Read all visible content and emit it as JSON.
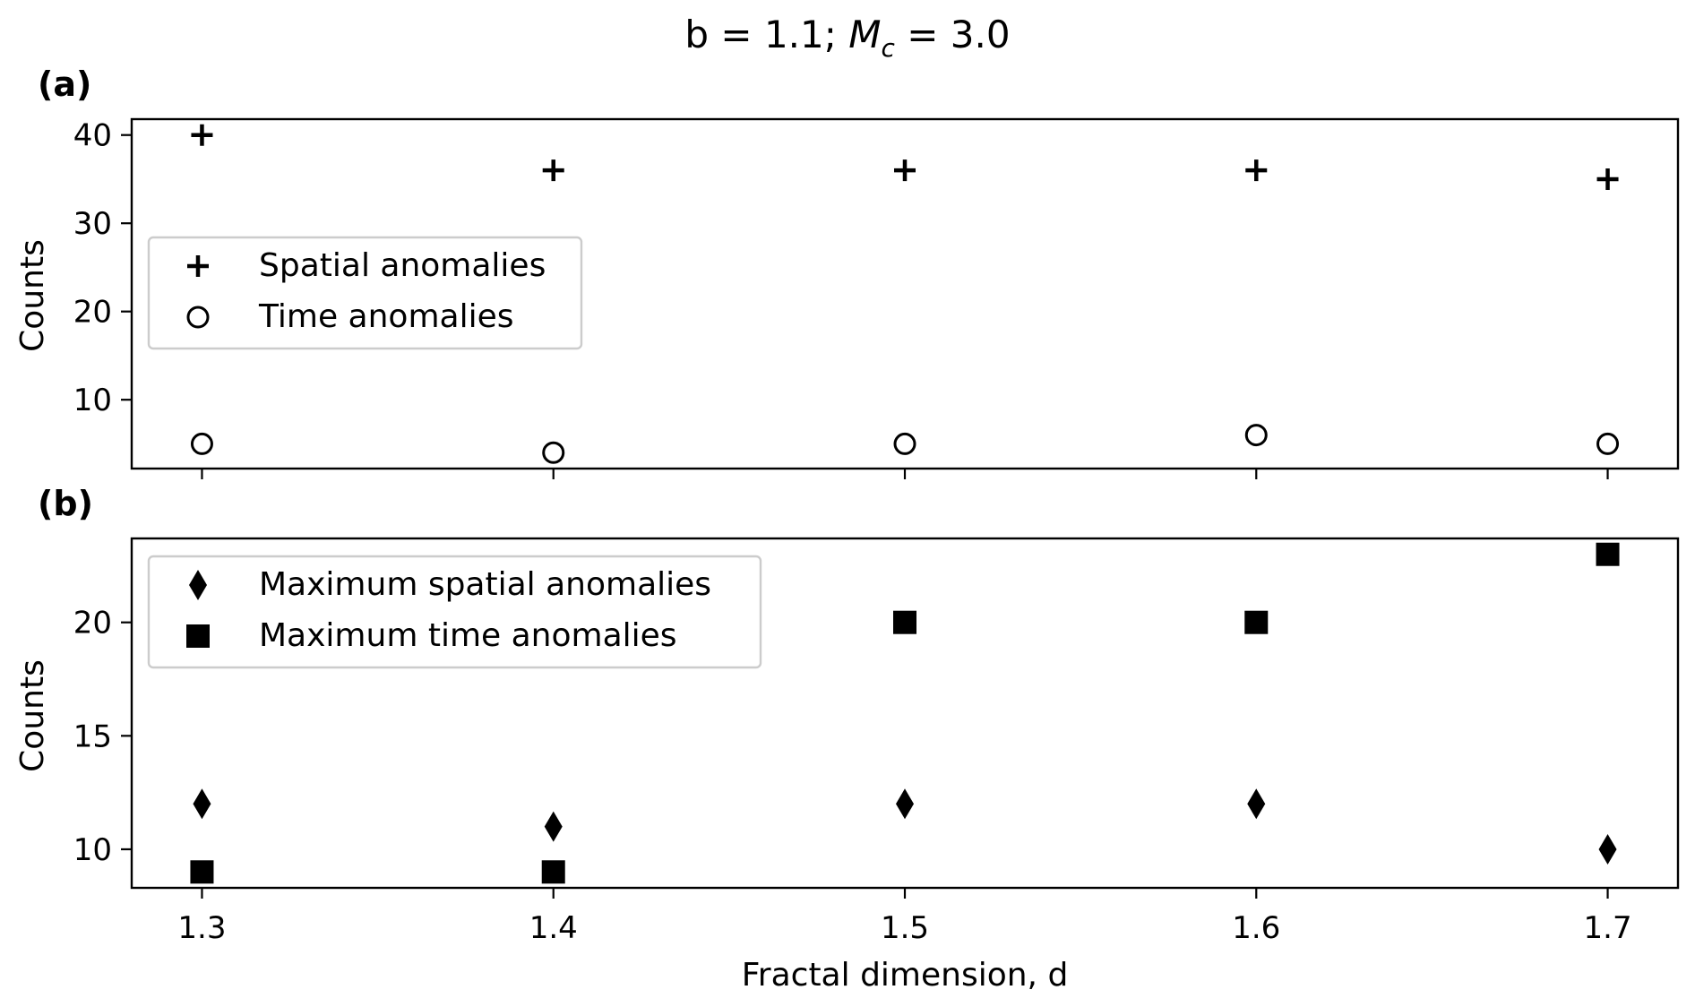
{
  "title_text": "b = 1.1; ",
  "title_var": "M",
  "title_sub": "c",
  "title_value": " = 3.0",
  "xlabel": "Fractal dimension, d",
  "chart_data": [
    {
      "type": "scatter",
      "panel_label": "(a)",
      "ylabel": "Counts",
      "xlim": [
        1.28,
        1.72
      ],
      "ylim": [
        2.2,
        41.8
      ],
      "x": [
        1.3,
        1.4,
        1.5,
        1.6,
        1.7
      ],
      "x_ticks": [
        "1.3",
        "1.4",
        "1.5",
        "1.6",
        "1.7"
      ],
      "y_ticks": [
        10,
        20,
        30,
        40
      ],
      "x_tick_labels_visible": false,
      "legend_position": "center-left",
      "grid": false,
      "series": [
        {
          "name": "Spatial anomalies",
          "marker": "plus",
          "values": [
            40,
            36,
            36,
            36,
            35
          ]
        },
        {
          "name": "Time anomalies",
          "marker": "circle-open",
          "values": [
            5,
            4,
            5,
            6,
            5
          ]
        }
      ]
    },
    {
      "type": "scatter",
      "panel_label": "(b)",
      "ylabel": "Counts",
      "xlim": [
        1.28,
        1.72
      ],
      "ylim": [
        8.3,
        23.7
      ],
      "x": [
        1.3,
        1.4,
        1.5,
        1.6,
        1.7
      ],
      "x_ticks": [
        "1.3",
        "1.4",
        "1.5",
        "1.6",
        "1.7"
      ],
      "y_ticks": [
        10,
        15,
        20
      ],
      "x_tick_labels_visible": true,
      "legend_position": "upper-left",
      "grid": false,
      "series": [
        {
          "name": "Maximum spatial anomalies",
          "marker": "diamond",
          "values": [
            12,
            11,
            12,
            12,
            10
          ]
        },
        {
          "name": "Maximum time anomalies",
          "marker": "square",
          "values": [
            9,
            9,
            20,
            20,
            23
          ]
        }
      ]
    }
  ]
}
